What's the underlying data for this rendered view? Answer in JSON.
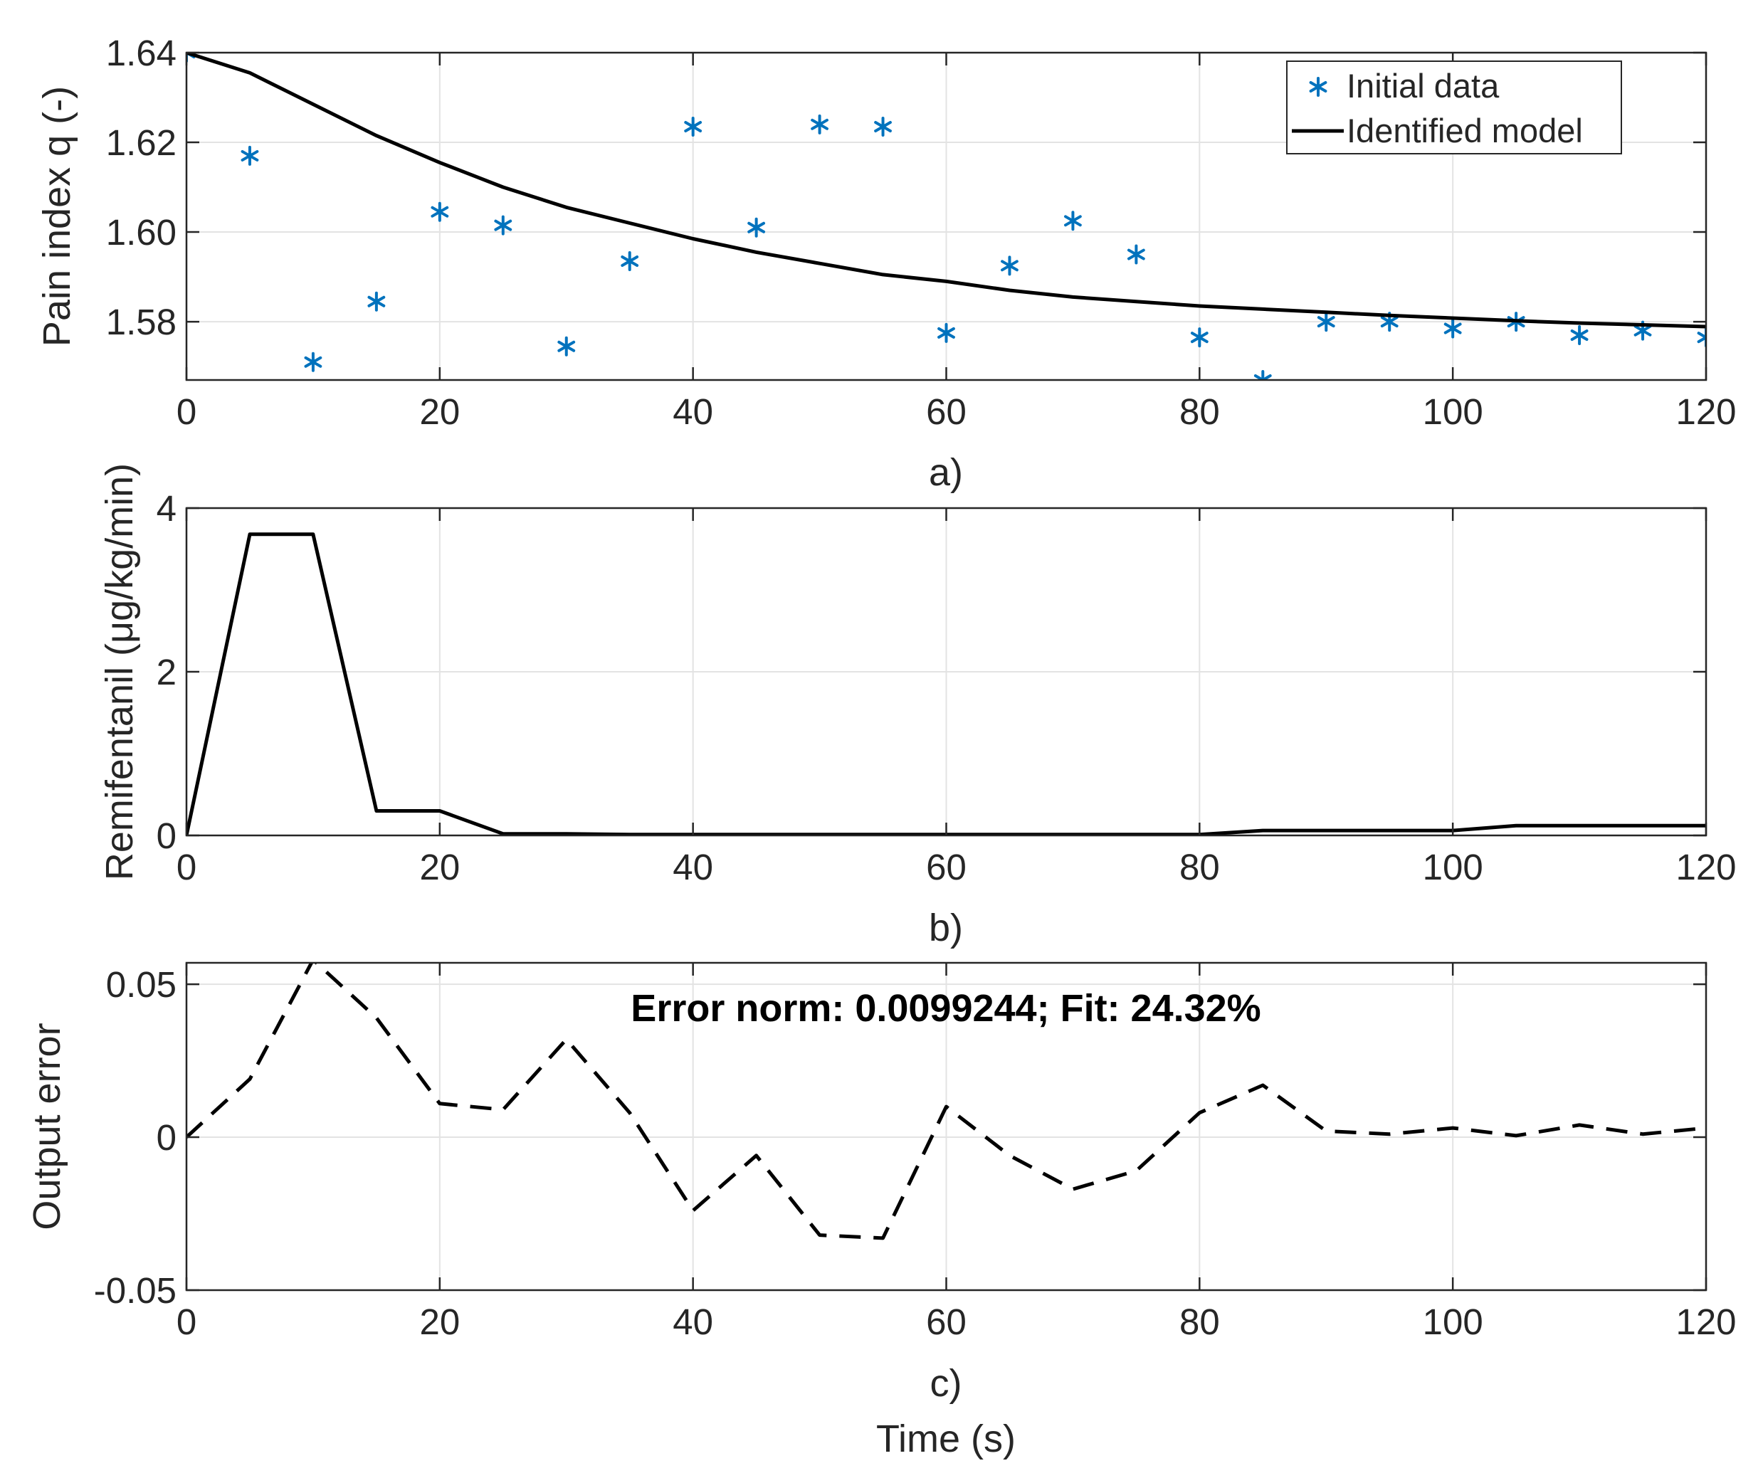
{
  "colors": {
    "data_marker": "#0072BD",
    "model_line": "#000000",
    "grid": "#e3e3e3",
    "axes": "#262626"
  },
  "chart_data": [
    {
      "id": "a",
      "type": "line",
      "panel_label": "a)",
      "xlabel": "",
      "ylabel": "Pain index q (-)",
      "xlim": [
        0,
        120
      ],
      "ylim": [
        1.567,
        1.64
      ],
      "xticks": [
        0,
        20,
        40,
        60,
        80,
        100,
        120
      ],
      "xtick_labels": [
        "0",
        "20",
        "40",
        "60",
        "80",
        "100",
        "120"
      ],
      "yticks": [
        1.58,
        1.6,
        1.62,
        1.64
      ],
      "ytick_labels": [
        "1.58",
        "1.60",
        "1.62",
        "1.64"
      ],
      "grid": true,
      "legend": {
        "position": "top-right",
        "entries": [
          "Initial data",
          "Identified model"
        ]
      },
      "series": [
        {
          "name": "Initial data",
          "style": "marker-asterisk",
          "x": [
            0,
            5,
            10,
            15,
            20,
            25,
            30,
            35,
            40,
            45,
            50,
            55,
            60,
            65,
            70,
            75,
            80,
            85,
            90,
            95,
            100,
            105,
            110,
            115,
            120
          ],
          "values": [
            1.64,
            1.617,
            1.571,
            1.5845,
            1.6045,
            1.6015,
            1.5745,
            1.5935,
            1.6235,
            1.601,
            1.624,
            1.6235,
            1.5775,
            1.5925,
            1.6025,
            1.595,
            1.5765,
            1.567,
            1.58,
            1.58,
            1.5785,
            1.58,
            1.577,
            1.578,
            1.5765
          ]
        },
        {
          "name": "Identified model",
          "style": "solid-line",
          "x": [
            0,
            5,
            10,
            15,
            20,
            25,
            30,
            35,
            40,
            45,
            50,
            55,
            60,
            65,
            70,
            75,
            80,
            85,
            90,
            95,
            100,
            105,
            110,
            115,
            120
          ],
          "values": [
            1.64,
            1.6355,
            1.6285,
            1.6215,
            1.6155,
            1.61,
            1.6055,
            1.602,
            1.5985,
            1.5955,
            1.593,
            1.5905,
            1.589,
            1.587,
            1.5855,
            1.5845,
            1.5835,
            1.5828,
            1.5821,
            1.5814,
            1.5808,
            1.5802,
            1.5797,
            1.5793,
            1.5789
          ]
        }
      ]
    },
    {
      "id": "b",
      "type": "line",
      "panel_label": "b)",
      "xlabel": "",
      "ylabel": "Remifentanil (μg/kg/min)",
      "xlim": [
        0,
        120
      ],
      "ylim": [
        0,
        4
      ],
      "xticks": [
        0,
        20,
        40,
        60,
        80,
        100,
        120
      ],
      "xtick_labels": [
        "0",
        "20",
        "40",
        "60",
        "80",
        "100",
        "120"
      ],
      "yticks": [
        0,
        2,
        4
      ],
      "ytick_labels": [
        "0",
        "2",
        "4"
      ],
      "grid": true,
      "series": [
        {
          "name": "Remifentanil",
          "style": "solid-line",
          "x": [
            0,
            5,
            10,
            15,
            20,
            25,
            30,
            35,
            40,
            45,
            50,
            55,
            60,
            65,
            70,
            75,
            80,
            85,
            90,
            95,
            100,
            105,
            110,
            115,
            120
          ],
          "values": [
            0,
            3.68,
            3.68,
            0.3,
            0.3,
            0.02,
            0.02,
            0.01,
            0.01,
            0.01,
            0.01,
            0.01,
            0.01,
            0.01,
            0.01,
            0.01,
            0.01,
            0.06,
            0.06,
            0.06,
            0.06,
            0.12,
            0.12,
            0.12,
            0.12
          ]
        }
      ]
    },
    {
      "id": "c",
      "type": "line",
      "panel_label": "c)",
      "xlabel": "Time (s)",
      "ylabel": "Output error",
      "xlim": [
        0,
        120
      ],
      "ylim": [
        -0.05,
        0.057
      ],
      "xticks": [
        0,
        20,
        40,
        60,
        80,
        100,
        120
      ],
      "xtick_labels": [
        "0",
        "20",
        "40",
        "60",
        "80",
        "100",
        "120"
      ],
      "yticks": [
        -0.05,
        0,
        0.05
      ],
      "ytick_labels": [
        "-0.05",
        "0",
        "0.05"
      ],
      "grid": true,
      "annotation": "Error norm: 0.0099244; Fit: 24.32%",
      "series": [
        {
          "name": "Output error",
          "style": "dashed-line",
          "x": [
            0,
            5,
            10,
            15,
            20,
            25,
            30,
            35,
            40,
            45,
            50,
            55,
            60,
            65,
            70,
            75,
            80,
            85,
            90,
            95,
            100,
            105,
            110,
            115,
            120
          ],
          "values": [
            0,
            0.019,
            0.058,
            0.039,
            0.011,
            0.009,
            0.032,
            0.008,
            -0.024,
            -0.006,
            -0.032,
            -0.033,
            0.01,
            -0.006,
            -0.017,
            -0.011,
            0.008,
            0.017,
            0.002,
            0.001,
            0.003,
            0.0005,
            0.004,
            0.001,
            0.003
          ]
        }
      ]
    }
  ]
}
